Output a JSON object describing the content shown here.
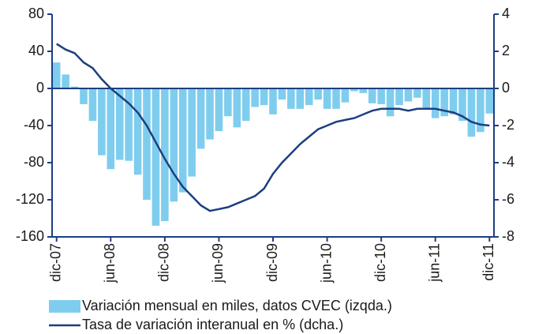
{
  "chart_data": {
    "type": "bar_line",
    "categories": [
      "dic-07",
      null,
      null,
      null,
      null,
      null,
      "jun-08",
      null,
      null,
      null,
      null,
      null,
      "dic-08",
      null,
      null,
      null,
      null,
      null,
      "jun-09",
      null,
      null,
      null,
      null,
      null,
      "dic-09",
      null,
      null,
      null,
      null,
      null,
      "jun-10",
      null,
      null,
      null,
      null,
      null,
      "dic-10",
      null,
      null,
      null,
      null,
      null,
      "jun-11",
      null,
      null,
      null,
      null,
      null,
      "dic-11"
    ],
    "series": [
      {
        "name": "Variación mensual en miles, datos CVEC (izqda.)",
        "type": "bar",
        "axis": "y",
        "color": "#7fcdee",
        "values": [
          28,
          15,
          2,
          -17,
          -35,
          -72,
          -87,
          -77,
          -78,
          -93,
          -120,
          -148,
          -143,
          -122,
          -112,
          -95,
          -65,
          -55,
          -46,
          -30,
          -42,
          -35,
          -20,
          -18,
          -28,
          -12,
          -22,
          -22,
          -18,
          -12,
          -22,
          -22,
          -15,
          -3,
          -5,
          -16,
          -17,
          -30,
          -18,
          -14,
          -10,
          -22,
          -32,
          -30,
          -28,
          -35,
          -52,
          -47,
          -27
        ]
      },
      {
        "name": "Tasa de variación interanual en  % (dcha.)",
        "type": "line",
        "axis": "y2",
        "color": "#1c3f80",
        "values": [
          2.4,
          2.1,
          1.9,
          1.4,
          1.1,
          0.5,
          0.0,
          -0.4,
          -0.8,
          -1.3,
          -2.0,
          -2.9,
          -3.8,
          -4.6,
          -5.3,
          -5.8,
          -6.3,
          -6.6,
          -6.5,
          -6.4,
          -6.2,
          -6.0,
          -5.8,
          -5.4,
          -4.6,
          -4.0,
          -3.5,
          -3.0,
          -2.6,
          -2.2,
          -2.0,
          -1.8,
          -1.7,
          -1.6,
          -1.4,
          -1.2,
          -1.1,
          -1.1,
          -1.1,
          -1.2,
          -1.1,
          -1.1,
          -1.1,
          -1.2,
          -1.3,
          -1.5,
          -1.8,
          -1.95,
          -2.0
        ]
      }
    ],
    "ylim": [
      -160,
      80
    ],
    "yticks": [
      -160,
      -120,
      -80,
      -40,
      0,
      40,
      80
    ],
    "y2lim": [
      -8,
      4
    ],
    "y2ticks": [
      -8,
      -6,
      -4,
      -2,
      0,
      2,
      4
    ],
    "axis_color": "#1c3f80"
  }
}
